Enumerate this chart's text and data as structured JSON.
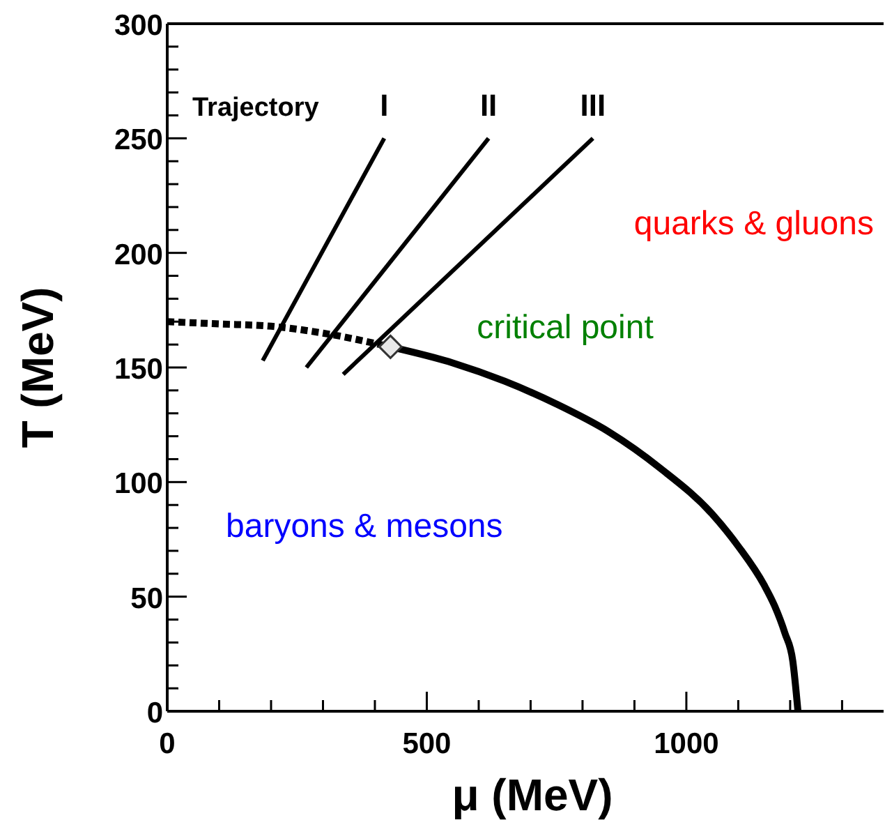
{
  "chart_data": {
    "type": "line",
    "xlabel": "μ (MeV)",
    "ylabel": "T (MeV)",
    "xlim": [
      0,
      1380
    ],
    "ylim": [
      0,
      300
    ],
    "xticks": [
      0,
      {
        "value": 100,
        "label": null
      },
      {
        "value": 200,
        "label": null
      },
      {
        "value": 300,
        "label": null
      },
      {
        "value": 400,
        "label": null
      },
      500,
      {
        "value": 600,
        "label": null
      },
      {
        "value": 700,
        "label": null
      },
      {
        "value": 800,
        "label": null
      },
      {
        "value": 900,
        "label": null
      },
      1000,
      {
        "value": 1100,
        "label": null
      },
      {
        "value": 1200,
        "label": null
      },
      {
        "value": 1300,
        "label": null
      }
    ],
    "yticks": [
      0,
      {
        "value": 10,
        "label": null
      },
      {
        "value": 20,
        "label": null
      },
      {
        "value": 30,
        "label": null
      },
      {
        "value": 40,
        "label": null
      },
      50,
      {
        "value": 60,
        "label": null
      },
      {
        "value": 70,
        "label": null
      },
      {
        "value": 80,
        "label": null
      },
      {
        "value": 90,
        "label": null
      },
      100,
      {
        "value": 110,
        "label": null
      },
      {
        "value": 120,
        "label": null
      },
      {
        "value": 130,
        "label": null
      },
      {
        "value": 140,
        "label": null
      },
      150,
      {
        "value": 160,
        "label": null
      },
      {
        "value": 170,
        "label": null
      },
      {
        "value": 180,
        "label": null
      },
      {
        "value": 190,
        "label": null
      },
      200,
      {
        "value": 210,
        "label": null
      },
      {
        "value": 220,
        "label": null
      },
      {
        "value": 230,
        "label": null
      },
      {
        "value": 240,
        "label": null
      },
      250,
      {
        "value": 260,
        "label": null
      },
      {
        "value": 270,
        "label": null
      },
      {
        "value": 280,
        "label": null
      },
      {
        "value": 290,
        "label": null
      },
      300
    ],
    "grid": false,
    "series": [
      {
        "color": "#000000",
        "line_style": "dotted",
        "x": [
          0,
          100,
          200,
          300,
          430
        ],
        "values": [
          170,
          169,
          168,
          165,
          159
        ]
      },
      {
        "color": "#000000",
        "line_style": "solid",
        "x": [
          430,
          550,
          650,
          750,
          850,
          950,
          1050,
          1100,
          1150,
          1170,
          1190,
          1205,
          1215
        ],
        "values": [
          159,
          152,
          144,
          134,
          122,
          106,
          86,
          72,
          55,
          46,
          34,
          22,
          0
        ]
      },
      {
        "name": "I",
        "color": "#000000",
        "line_style": "solid",
        "x": [
          184,
          418
        ],
        "values": [
          153,
          250
        ]
      },
      {
        "name": "II",
        "color": "#000000",
        "line_style": "solid",
        "x": [
          268,
          619
        ],
        "values": [
          150,
          250
        ]
      },
      {
        "name": "III",
        "color": "#000000",
        "line_style": "solid",
        "x": [
          339,
          820
        ],
        "values": [
          147,
          250
        ]
      },
      {
        "type": "scatter",
        "color": "#e8e8e8",
        "marker": "diamond",
        "x": [
          430
        ],
        "values": [
          159
        ]
      }
    ],
    "annotations": [
      "Trajectory",
      "quarks & gluons",
      {
        "text": "critical point",
        "x": 430,
        "y": 159
      },
      "baryons & mesons"
    ]
  }
}
